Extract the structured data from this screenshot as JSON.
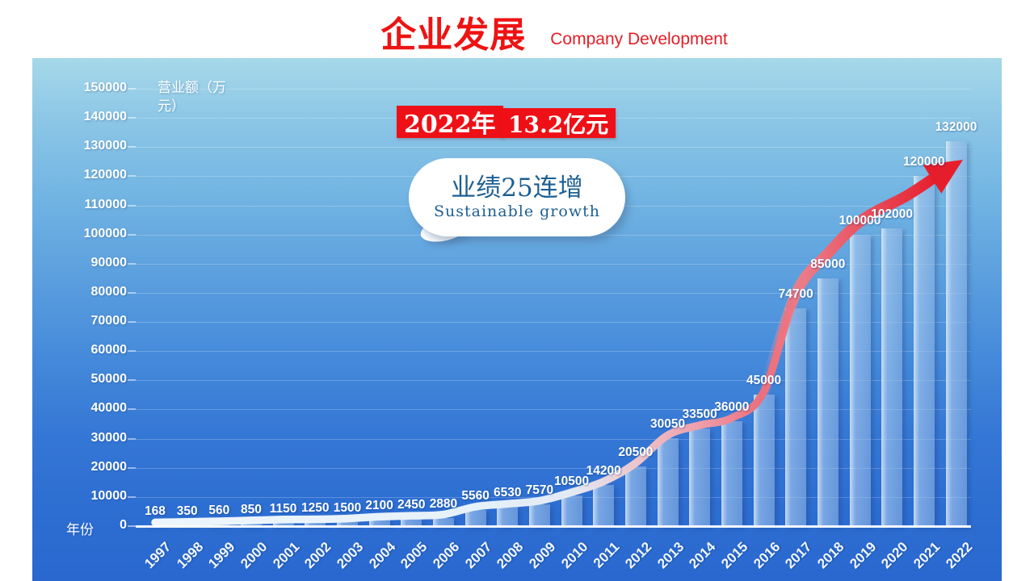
{
  "header": {
    "title": "企业发展",
    "subtitle": "Company Development"
  },
  "callout": {
    "year_badge": "2022年",
    "amount_badge": "13.2亿元"
  },
  "bubble": {
    "line1": "业绩25连增",
    "line2": "Sustainable growth"
  },
  "axes": {
    "y_title": "营业额（万元）",
    "x_title": "年份"
  },
  "colors": {
    "accent_red": "#ee1313",
    "badge_red": "#ee1016",
    "bubble_text_blue": "#1d5f93",
    "panel_top_blue": "#a6d8e9",
    "panel_bottom_blue": "#2a68cf"
  },
  "chart_data": {
    "type": "bar",
    "title": "企业发展 Company Development",
    "xlabel": "年份",
    "ylabel": "营业额（万元）",
    "ylim": [
      0,
      150000
    ],
    "y_tick_step": 10000,
    "grid": true,
    "legend": "none",
    "categories": [
      "1997",
      "1998",
      "1999",
      "2000",
      "2001",
      "2002",
      "2003",
      "2004",
      "2005",
      "2006",
      "2007",
      "2008",
      "2009",
      "2010",
      "2011",
      "2012",
      "2013",
      "2014",
      "2015",
      "2016",
      "2017",
      "2018",
      "2019",
      "2020",
      "2021",
      "2022"
    ],
    "values": [
      168,
      350,
      560,
      850,
      1150,
      1250,
      1500,
      2100,
      2450,
      2880,
      5560,
      6530,
      7570,
      10500,
      14200,
      20500,
      30050,
      33500,
      36000,
      45000,
      74700,
      85000,
      100000,
      102000,
      120000,
      132000
    ],
    "overlay": "smooth growth line turning into red rising arrow",
    "annotations": [
      "2022年 13.2亿元",
      "业绩25连增 Sustainable growth"
    ]
  }
}
